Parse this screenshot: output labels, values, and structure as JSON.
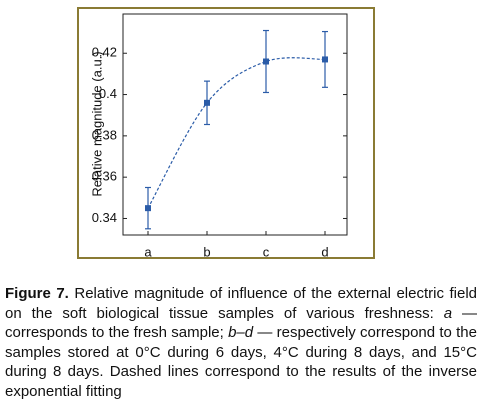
{
  "chart_data": {
    "type": "errorbar",
    "ylabel": "Relative magnitude (a.u.)",
    "categories": [
      "a",
      "b",
      "c",
      "d"
    ],
    "values": [
      0.345,
      0.396,
      0.416,
      0.417
    ],
    "errors": [
      0.01,
      0.0105,
      0.015,
      0.0135
    ],
    "color": "#2b5ca8",
    "ylim": [
      0.332,
      0.439
    ],
    "yticks": [
      0.34,
      0.36,
      0.38,
      0.4,
      0.42
    ]
  },
  "caption": {
    "label": "Figure 7.",
    "text_1": " Relative magnitude of influence of the external electric field on the soft biological tissue samples of various freshness: ",
    "italic_1": "a",
    "text_2": " — corresponds to the fresh sample; ",
    "italic_2": "b–d",
    "text_3": " — respectively correspond to the samples stored at 0°C during 6 days, 4°C during 8 days, and 15°C during 8 days. Dashed lines correspond to the results of the inverse exponential fitting"
  }
}
